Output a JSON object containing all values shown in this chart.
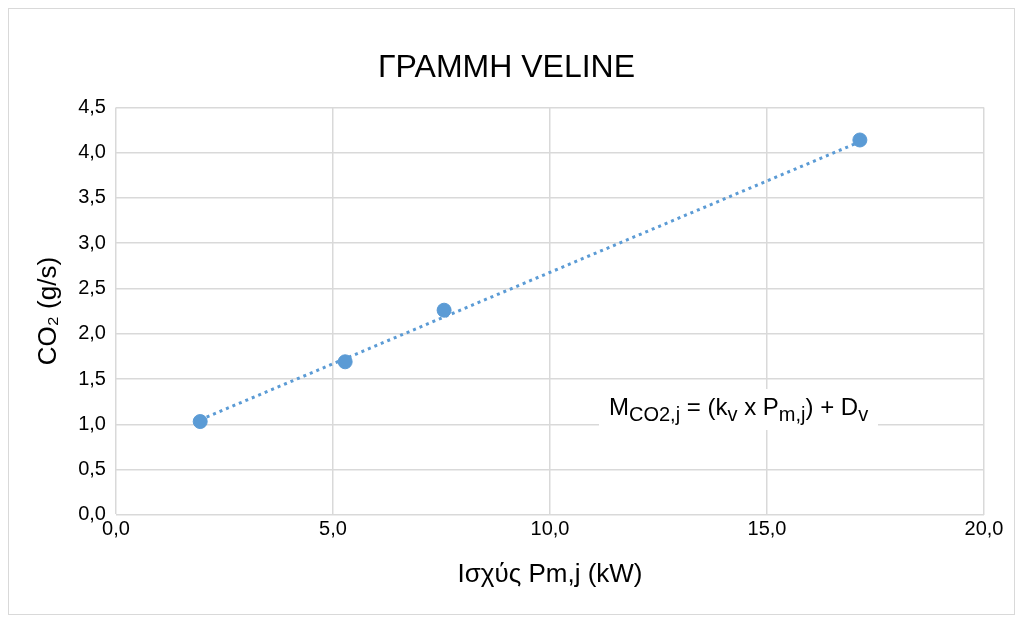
{
  "chart_data": {
    "type": "scatter",
    "title": "ΓΡΑΜΜΗ VELINE",
    "xlabel": "Ισχύς Pm,j (kW)",
    "ylabel": "CO₂ (g/s)",
    "annotations": [
      "M$_{CO2,j}$ = (k$_{v}$ x P$_{m,j}$) + D$_{v}$"
    ],
    "series": [
      {
        "color": "#5b9bd5",
        "marker": "circle",
        "x": [
          1.94,
          5.28,
          7.56,
          17.14
        ],
        "values": [
          1.03,
          1.69,
          2.26,
          4.14
        ]
      },
      {
        "type": "line",
        "color": "#5b9bd5",
        "marker": "none",
        "line_style": "dotted",
        "x": [
          1.94,
          17.14
        ],
        "values": [
          1.05,
          4.12
        ]
      }
    ],
    "xlim": [
      0,
      20
    ],
    "xticks": [
      {
        "value": 0,
        "label": "0,0"
      },
      {
        "value": 5,
        "label": "5,0"
      },
      {
        "value": 10,
        "label": "10,0"
      },
      {
        "value": 15,
        "label": "15,0"
      },
      {
        "value": 20,
        "label": "20,0"
      }
    ],
    "ylim": [
      0,
      4.5
    ],
    "yticks": [
      {
        "value": 0,
        "label": "0,0"
      },
      {
        "value": 0.5,
        "label": "0,5"
      },
      {
        "value": 1,
        "label": "1,0"
      },
      {
        "value": 1.5,
        "label": "1,5"
      },
      {
        "value": 2,
        "label": "2,0"
      },
      {
        "value": 2.5,
        "label": "2,5"
      },
      {
        "value": 3,
        "label": "3,0"
      },
      {
        "value": 3.5,
        "label": "3,5"
      },
      {
        "value": 4,
        "label": "4,0"
      },
      {
        "value": 4.5,
        "label": "4,5"
      }
    ],
    "grid": true,
    "legend": false
  }
}
